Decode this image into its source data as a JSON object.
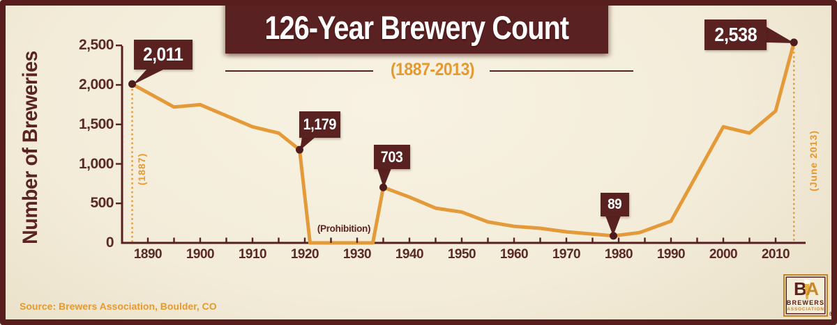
{
  "colors": {
    "maroon": "#5a2121",
    "axis_maroon": "#571f20",
    "orange_line": "#e49a39",
    "orange_text": "#e5992f",
    "cream": "#f3ecd9",
    "dot": "#4e1c1c",
    "white": "#ffffff"
  },
  "chart_data": {
    "type": "line",
    "title": "126-Year Brewery Count",
    "subtitle": "(1887-2013)",
    "ylabel": "Number of Breweries",
    "xlabel": "",
    "x_range": [
      1887,
      2013.5
    ],
    "ylim": [
      0,
      2500
    ],
    "grid": false,
    "legend": "none",
    "y_ticks": [
      {
        "value": 0,
        "label": "0"
      },
      {
        "value": 500,
        "label": "500"
      },
      {
        "value": 1000,
        "label": "1,000"
      },
      {
        "value": 1500,
        "label": "1,500"
      },
      {
        "value": 2000,
        "label": "2,000"
      },
      {
        "value": 2500,
        "label": "2,500"
      }
    ],
    "x_ticks": [
      {
        "year": 1890,
        "label": "1890"
      },
      {
        "year": 1900,
        "label": "1900"
      },
      {
        "year": 1910,
        "label": "1910"
      },
      {
        "year": 1920,
        "label": "1920"
      },
      {
        "year": 1930,
        "label": "1930"
      },
      {
        "year": 1940,
        "label": "1940"
      },
      {
        "year": 1950,
        "label": "1950"
      },
      {
        "year": 1960,
        "label": "1960"
      },
      {
        "year": 1970,
        "label": "1970"
      },
      {
        "year": 1980,
        "label": "1980"
      },
      {
        "year": 1990,
        "label": "1990"
      },
      {
        "year": 2000,
        "label": "2000"
      },
      {
        "year": 2010,
        "label": "2010"
      }
    ],
    "x_minor_tick_step_years": 5,
    "series": [
      {
        "name": "Number of Breweries",
        "color": "#e49a39",
        "points": [
          [
            1887,
            2011
          ],
          [
            1895,
            1720
          ],
          [
            1900,
            1750
          ],
          [
            1905,
            1610
          ],
          [
            1910,
            1470
          ],
          [
            1915,
            1390
          ],
          [
            1919,
            1179
          ],
          [
            1921,
            0
          ],
          [
            1933,
            0
          ],
          [
            1935,
            703
          ],
          [
            1940,
            580
          ],
          [
            1945,
            440
          ],
          [
            1950,
            390
          ],
          [
            1955,
            265
          ],
          [
            1960,
            210
          ],
          [
            1965,
            185
          ],
          [
            1970,
            140
          ],
          [
            1979,
            89
          ],
          [
            1984,
            130
          ],
          [
            1990,
            275
          ],
          [
            2000,
            1470
          ],
          [
            2005,
            1390
          ],
          [
            2010,
            1670
          ],
          [
            2013.5,
            2538
          ]
        ]
      }
    ],
    "callouts": [
      {
        "label": "2,011",
        "year": 1887,
        "value": 2011,
        "dotted_guide": true
      },
      {
        "label": "1,179",
        "year": 1919,
        "value": 1179,
        "dotted_guide": false
      },
      {
        "label": "703",
        "year": 1935,
        "value": 703,
        "dotted_guide": false
      },
      {
        "label": "89",
        "year": 1979,
        "value": 89,
        "dotted_guide": false
      },
      {
        "label": "2,538",
        "year": 2013.5,
        "value": 2538,
        "dotted_guide": true
      }
    ],
    "prohibition_label": "(Prohibition)",
    "start_year_label": "(1887)",
    "end_date_label": "(June 2013)"
  },
  "source": {
    "label": "Source: Brewers Association, Boulder, CO"
  },
  "logo": {
    "initial_b": "B",
    "initial_a": "A",
    "name_line1": "BREWERS",
    "name_line2": "ASSOCIATION",
    "registered_mark": "®"
  }
}
